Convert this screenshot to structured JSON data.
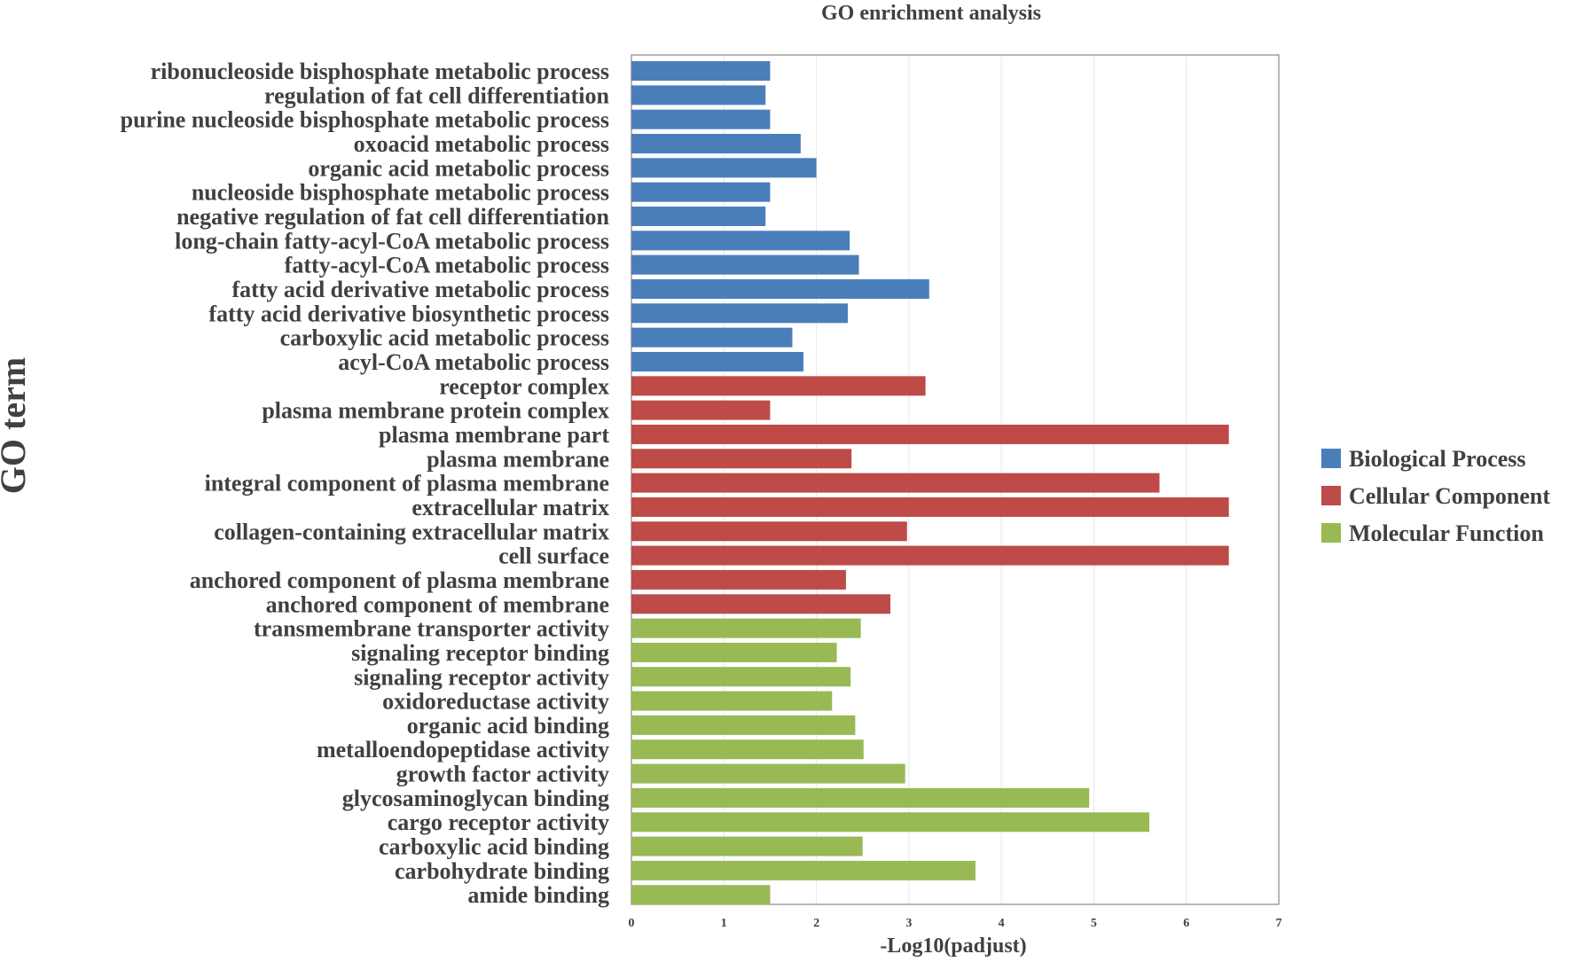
{
  "chart_data": {
    "type": "bar",
    "orientation": "horizontal",
    "title": "GO enrichment analysis",
    "xlabel": "-Log10(padjust)",
    "ylabel": "GO term",
    "xlim": [
      0,
      7
    ],
    "xticks": [
      "0",
      "1",
      "2",
      "3",
      "4",
      "5",
      "6",
      "7"
    ],
    "grid": true,
    "legend_position": "right",
    "legend": [
      {
        "name": "Biological Process",
        "color": "#4a7ebb"
      },
      {
        "name": "Cellular Component",
        "color": "#be4b48"
      },
      {
        "name": "Molecular Function",
        "color": "#98b954"
      }
    ],
    "categories": [
      "ribonucleoside bisphosphate metabolic process",
      "regulation of fat cell differentiation",
      "purine nucleoside bisphosphate metabolic process",
      "oxoacid metabolic process",
      "organic acid metabolic process",
      "nucleoside bisphosphate metabolic process",
      "negative regulation of fat cell differentiation",
      "long-chain fatty-acyl-CoA metabolic process",
      "fatty-acyl-CoA metabolic process",
      "fatty acid derivative metabolic process",
      "fatty acid derivative biosynthetic process",
      "carboxylic acid metabolic process",
      "acyl-CoA metabolic process",
      "receptor complex",
      "plasma membrane protein complex",
      "plasma membrane part",
      "plasma membrane",
      "integral component of plasma membrane",
      "extracellular matrix",
      "collagen-containing extracellular matrix",
      "cell surface",
      "anchored component of plasma membrane",
      "anchored component of membrane",
      "transmembrane transporter activity",
      "signaling receptor binding",
      "signaling receptor activity",
      "oxidoreductase activity",
      "organic acid binding",
      "metalloendopeptidase activity",
      "growth factor activity",
      "glycosaminoglycan binding",
      "cargo receptor activity",
      "carboxylic acid binding",
      "carbohydrate binding",
      "amide binding"
    ],
    "values": [
      1.5,
      1.45,
      1.5,
      1.83,
      2.0,
      1.5,
      1.45,
      2.36,
      2.46,
      3.22,
      2.34,
      1.74,
      1.86,
      3.18,
      1.5,
      6.46,
      2.38,
      5.71,
      6.46,
      2.98,
      6.46,
      2.32,
      2.8,
      2.48,
      2.22,
      2.37,
      2.17,
      2.42,
      2.51,
      2.96,
      4.95,
      5.6,
      2.5,
      3.72,
      1.5
    ],
    "groups": [
      "Biological Process",
      "Biological Process",
      "Biological Process",
      "Biological Process",
      "Biological Process",
      "Biological Process",
      "Biological Process",
      "Biological Process",
      "Biological Process",
      "Biological Process",
      "Biological Process",
      "Biological Process",
      "Biological Process",
      "Cellular Component",
      "Cellular Component",
      "Cellular Component",
      "Cellular Component",
      "Cellular Component",
      "Cellular Component",
      "Cellular Component",
      "Cellular Component",
      "Cellular Component",
      "Cellular Component",
      "Molecular Function",
      "Molecular Function",
      "Molecular Function",
      "Molecular Function",
      "Molecular Function",
      "Molecular Function",
      "Molecular Function",
      "Molecular Function",
      "Molecular Function",
      "Molecular Function",
      "Molecular Function",
      "Molecular Function"
    ]
  }
}
